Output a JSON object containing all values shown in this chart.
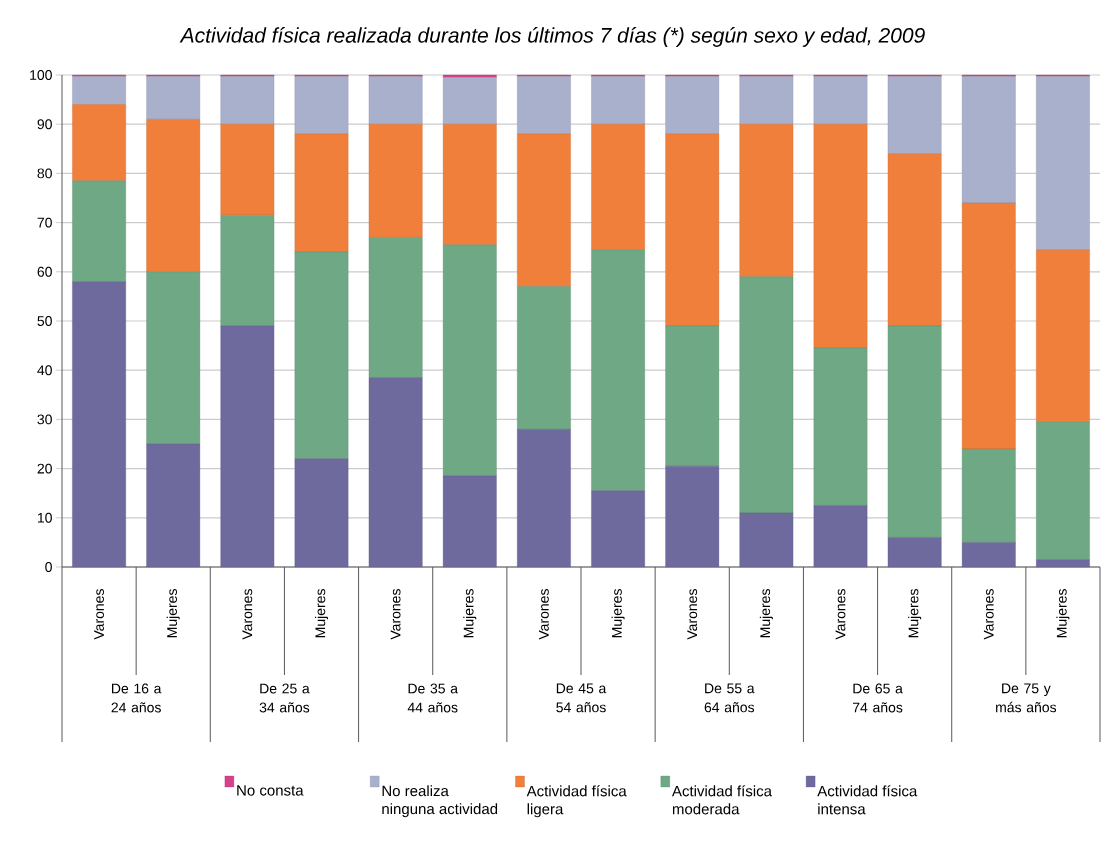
{
  "chart_data": {
    "type": "bar",
    "stacked": true,
    "title": "Actividad física realizada durante los últimos 7 días (*) según sexo y edad, 2009",
    "categories": [
      "Varones",
      "Mujeres",
      "Varones",
      "Mujeres",
      "Varones",
      "Mujeres",
      "Varones",
      "Mujeres",
      "Varones",
      "Mujeres",
      "Varones",
      "Mujeres",
      "Varones",
      "Mujeres"
    ],
    "annotations": [
      "De 16 a 24 años",
      "De 25 a 34 años",
      "De 35 a 44 años",
      "De 45 a 54 años",
      "De 55 a 64 años",
      "De 65 a 74 años",
      "De 75 y más años"
    ],
    "series": [
      {
        "name": "Actividad física intensa",
        "color": "#6e6a9e",
        "values": [
          58,
          25,
          49,
          22,
          38.5,
          18.5,
          28,
          15.5,
          20.5,
          11,
          12.5,
          6,
          5,
          1.5
        ]
      },
      {
        "name": "Actividad física moderada",
        "color": "#6fa884",
        "values": [
          20.5,
          35,
          22.5,
          42,
          28.5,
          47,
          29,
          49,
          28.5,
          48,
          32,
          43,
          19,
          28
        ]
      },
      {
        "name": "Actividad física ligera",
        "color": "#f07f3c",
        "values": [
          15.5,
          31,
          18.5,
          24,
          23,
          24.5,
          31,
          25.5,
          39,
          31,
          45.5,
          35,
          50,
          35
        ]
      },
      {
        "name": "No realiza ninguna actividad",
        "color": "#a9b0cc",
        "values": [
          5.7,
          8.7,
          9.7,
          11.7,
          9.7,
          9.5,
          11.7,
          9.7,
          11.7,
          9.7,
          9.7,
          15.7,
          25.7,
          35.2
        ]
      },
      {
        "name": "No consta",
        "color": "#d6418a",
        "values": [
          0.3,
          0.3,
          0.3,
          0.3,
          0.3,
          0.5,
          0.3,
          0.3,
          0.3,
          0.3,
          0.3,
          0.3,
          0.3,
          0.3
        ]
      }
    ],
    "ylim": [
      0,
      100
    ],
    "yticks": [
      0,
      10,
      20,
      30,
      40,
      50,
      60,
      70,
      80,
      90,
      100
    ],
    "grid": "y",
    "legend": "bottom"
  }
}
